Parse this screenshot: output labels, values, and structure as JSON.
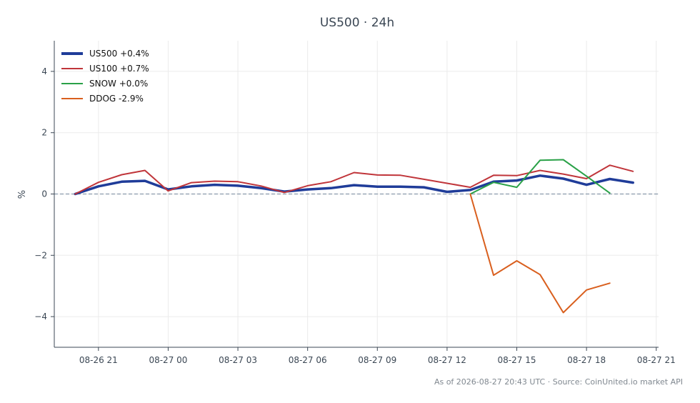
{
  "chart_data": {
    "type": "line",
    "title": "US500 · 24h",
    "xlabel": "",
    "ylabel": "%",
    "x_tick_labels": [
      "08-26 21",
      "08-27 00",
      "08-27 03",
      "08-27 06",
      "08-27 09",
      "08-27 12",
      "08-27 15",
      "08-27 18",
      "08-27 21"
    ],
    "x_tick_positions": [
      21,
      24,
      27,
      30,
      33,
      36,
      39,
      42,
      45
    ],
    "xlim": [
      19.1,
      45.1
    ],
    "ylim": [
      -5,
      5
    ],
    "y_ticks": [
      -4,
      -2,
      0,
      2,
      4
    ],
    "y_tick_labels": [
      "−4",
      "−2",
      "0",
      "2",
      "4"
    ],
    "grid": true,
    "zero_line": true,
    "legend_position": "top-left",
    "series": [
      {
        "name": "US500 +0.4%",
        "color": "#1f3c99",
        "x": [
          20,
          21,
          22,
          23,
          24,
          25,
          26,
          27,
          28,
          29,
          30,
          31,
          32,
          33,
          34,
          35,
          36,
          37,
          38,
          39,
          40,
          41,
          42,
          43,
          44
        ],
        "y": [
          0.0,
          0.25,
          0.4,
          0.43,
          0.15,
          0.25,
          0.3,
          0.27,
          0.19,
          0.08,
          0.15,
          0.19,
          0.29,
          0.24,
          0.24,
          0.22,
          0.07,
          0.13,
          0.4,
          0.44,
          0.6,
          0.5,
          0.3,
          0.49,
          0.37
        ]
      },
      {
        "name": "US100 +0.7%",
        "color": "#c0353a",
        "x": [
          20,
          21,
          22,
          23,
          24,
          25,
          26,
          27,
          28,
          29,
          30,
          31,
          32,
          33,
          34,
          35,
          36,
          37,
          38,
          39,
          40,
          41,
          42,
          43,
          44
        ],
        "y": [
          0.0,
          0.38,
          0.63,
          0.77,
          0.1,
          0.37,
          0.42,
          0.4,
          0.26,
          0.05,
          0.27,
          0.4,
          0.7,
          0.62,
          0.61,
          0.48,
          0.35,
          0.22,
          0.61,
          0.6,
          0.77,
          0.65,
          0.5,
          0.94,
          0.74
        ]
      },
      {
        "name": "SNOW +0.0%",
        "color": "#2aa148",
        "x": [
          37,
          38,
          39,
          40,
          41,
          42,
          43
        ],
        "y": [
          0.0,
          0.38,
          0.22,
          1.1,
          1.12,
          0.58,
          0.03
        ]
      },
      {
        "name": "DDOG -2.9%",
        "color": "#d95f1e",
        "x": [
          37,
          38,
          39,
          40,
          41,
          42,
          43
        ],
        "y": [
          0.0,
          -2.65,
          -2.18,
          -2.63,
          -3.87,
          -3.13,
          -2.91
        ]
      }
    ],
    "source_note": "As of 2026-08-27 20:43 UTC · Source: CoinUnited.io market API"
  }
}
